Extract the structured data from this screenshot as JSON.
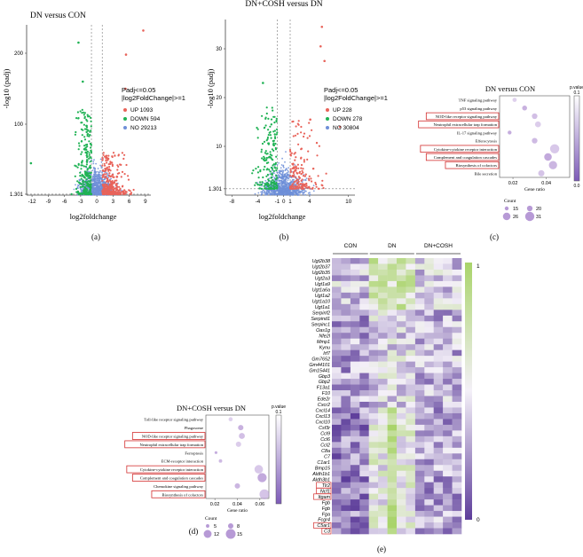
{
  "figure": {
    "panel_labels": {
      "a": "(a)",
      "b": "(b)",
      "c": "(c)",
      "d": "(d)",
      "e": "(e)"
    }
  },
  "colors": {
    "up": "#e8635a",
    "down": "#1fb254",
    "no": "#6f8fd8",
    "bubble": "#b79ad6",
    "heat_high": "#a9d46a",
    "heat_low": "#5d3d9a",
    "highlight": "#d32f2f"
  },
  "chart_data": [
    {
      "type": "scatter",
      "panel": "a",
      "title": "DN versus CON",
      "xlabel": "log2foldchange",
      "ylabel": "-log10 (padj)",
      "xticks": [
        "-12",
        "-9",
        "-6",
        "-3",
        "0",
        "3",
        "6",
        "9"
      ],
      "yticks": [
        "1.301",
        "100",
        "200"
      ],
      "legend_title": [
        "Padj<=0.05",
        "|log2FoldChange|>=1"
      ],
      "series": [
        {
          "name": "UP 1093",
          "count": 1093
        },
        {
          "name": "DOWN 594",
          "count": 594
        },
        {
          "name": "NO 29213",
          "count": 29213
        }
      ]
    },
    {
      "type": "scatter",
      "panel": "b",
      "title": "DN+COSH versus DN",
      "xlabel": "log2foldchange",
      "ylabel": "-log10 (padj)",
      "xticks": [
        "-8",
        "-4",
        "-1",
        "0",
        "1",
        "4",
        "10"
      ],
      "yticks": [
        "1.301",
        "10",
        "20",
        "30"
      ],
      "legend_title": [
        "Padj<=0.05",
        "|log2FoldChange|>=1"
      ],
      "series": [
        {
          "name": "UP 228",
          "count": 228
        },
        {
          "name": "DOWN 278",
          "count": 278
        },
        {
          "name": "NO 30804",
          "count": 30804
        }
      ]
    },
    {
      "type": "scatter",
      "panel": "c",
      "subtype": "bubble",
      "title": "DN versus CON",
      "xlabel": "Gene ratio",
      "xticks": [
        "0.02",
        "0.04"
      ],
      "colorbar_title": "p.value",
      "colorbar_ticks": [
        "0.1",
        "0.0"
      ],
      "size_legend_title": "Count",
      "size_legend": [
        "15",
        "20",
        "26",
        "31"
      ],
      "terms": [
        "TNF signaling pathway",
        "p53 signaling pathway",
        "NOD-like receptor signaling pathway",
        "Neutrophil extracellular trap formation",
        "IL-17 signaling pathway",
        "Efferocytosis",
        "Cytokine-cytokine receptor interaction",
        "Complement and coagulation cascades",
        "Biosynthesis of cofactors",
        "Bile secretion"
      ],
      "highlighted": [
        2,
        3,
        6,
        7,
        8
      ],
      "gene_ratio": [
        0.021,
        0.027,
        0.033,
        0.035,
        0.018,
        0.033,
        0.045,
        0.041,
        0.044,
        0.037
      ],
      "count": [
        16,
        18,
        20,
        21,
        15,
        20,
        31,
        26,
        28,
        22
      ]
    },
    {
      "type": "scatter",
      "panel": "d",
      "subtype": "bubble",
      "title": "DN+COSH versus DN",
      "xlabel": "Gene ratio",
      "xticks": [
        "0.02",
        "0.04",
        "0.06"
      ],
      "colorbar_title": "p.value",
      "colorbar_ticks": [
        "0.1"
      ],
      "size_legend_title": "Count",
      "size_legend": [
        "5",
        "8",
        "12",
        "15"
      ],
      "terms": [
        "Toll-like receptor signaling pathway",
        "Phagosome",
        "NOD-like receptor signaling pathway",
        "Neutrophil extracellular trap formation",
        "Ferroptosis",
        "ECM-receptor interaction",
        "Cytokine-cytokine receptor interaction",
        "Complement and coagulation cascades",
        "Chemokine signaling pathway",
        "Biosynthesis of cofactors"
      ],
      "highlighted": [
        2,
        3,
        6,
        7,
        9
      ],
      "gene_ratio": [
        0.034,
        0.043,
        0.044,
        0.041,
        0.021,
        0.025,
        0.059,
        0.062,
        0.04,
        0.064
      ],
      "count": [
        6,
        8,
        9,
        8,
        4,
        5,
        13,
        14,
        8,
        15
      ]
    },
    {
      "type": "heatmap",
      "panel": "e",
      "column_groups": [
        "CON",
        "DN",
        "DN+COSH"
      ],
      "colorbar_ticks": [
        "1",
        "0"
      ],
      "genes": [
        "Ugt2b38",
        "Ugt2b37",
        "Ugt2b35",
        "Ugt2a3",
        "Ugt1a9",
        "Ugt1a6a",
        "Ugt1a2",
        "Ugt1a10",
        "Ugt1a1",
        "Serpinf2",
        "Serpind1",
        "Serpinc1",
        "Oas1g",
        "Nfe2l",
        "Mmp1",
        "Kynu",
        "Irf7",
        "Gm7652",
        "Gm44101",
        "Gm15441",
        "Gbp3",
        "Gbp2",
        "F13a1",
        "F10",
        "Ede2r",
        "Cxcr2",
        "Cxcl14",
        "Cxcl13",
        "Cxcl10",
        "Csf3r",
        "Ccl9",
        "Ccl6",
        "Ccl2",
        "C8a",
        "C7",
        "C1ar1",
        "Bmp15",
        "Aldh1b1",
        "Aldh3b1",
        "Tlr2",
        "Ncf1",
        "Itgam",
        "Fgb",
        "Fgb",
        "Fga",
        "Fcgr4",
        "C5ar1",
        "C3"
      ],
      "highlighted_genes": [
        39,
        40,
        41,
        46,
        47
      ]
    }
  ]
}
